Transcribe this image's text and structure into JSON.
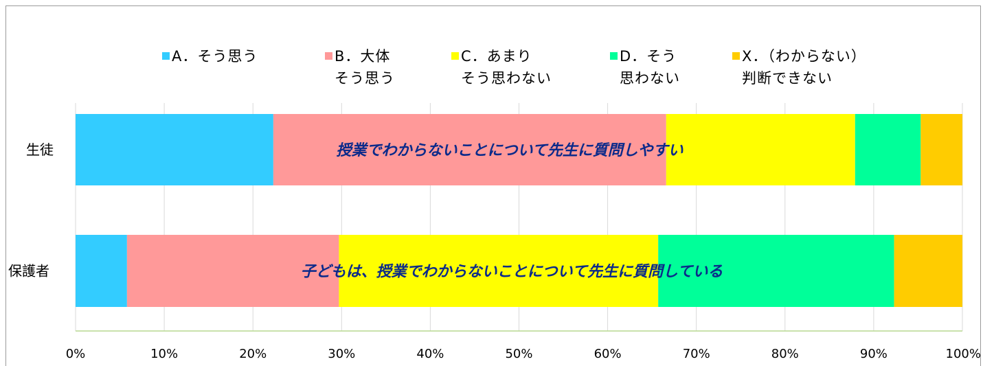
{
  "chart_data": {
    "type": "bar",
    "orientation": "horizontal",
    "stacked": "percent",
    "categories": [
      "生徒",
      "保護者"
    ],
    "series": [
      {
        "name": "A．そう思う",
        "name_lines": [
          "A．そう思う"
        ],
        "color": "#33ccff",
        "values": [
          22.3,
          5.8
        ]
      },
      {
        "name": "B．大体そう思う",
        "name_lines": [
          "B．大体",
          "そう思う"
        ],
        "color": "#ff9999",
        "values": [
          44.3,
          23.9
        ]
      },
      {
        "name": "C．あまりそう思わない",
        "name_lines": [
          "C．あまり",
          "そう思わない"
        ],
        "color": "#ffff00",
        "values": [
          21.3,
          36.0
        ]
      },
      {
        "name": "D．そう思わない",
        "name_lines": [
          "D．そう",
          "思わない"
        ],
        "color": "#00ff99",
        "values": [
          7.4,
          26.6
        ]
      },
      {
        "name": "X．（わからない）判断できない",
        "name_lines": [
          "X．（わからない）",
          "判断できない"
        ],
        "color": "#ffcc00",
        "values": [
          4.7,
          7.7
        ]
      }
    ],
    "bar_titles": [
      "授業でわからないことについて先生に質問しやすい",
      "子どもは、授業でわからないことについて先生に質問している"
    ],
    "xlim": [
      0,
      100
    ],
    "x_ticks": [
      "0%",
      "10%",
      "20%",
      "30%",
      "40%",
      "50%",
      "60%",
      "70%",
      "80%",
      "90%",
      "100%"
    ],
    "grid": true,
    "legend_position": "top"
  }
}
